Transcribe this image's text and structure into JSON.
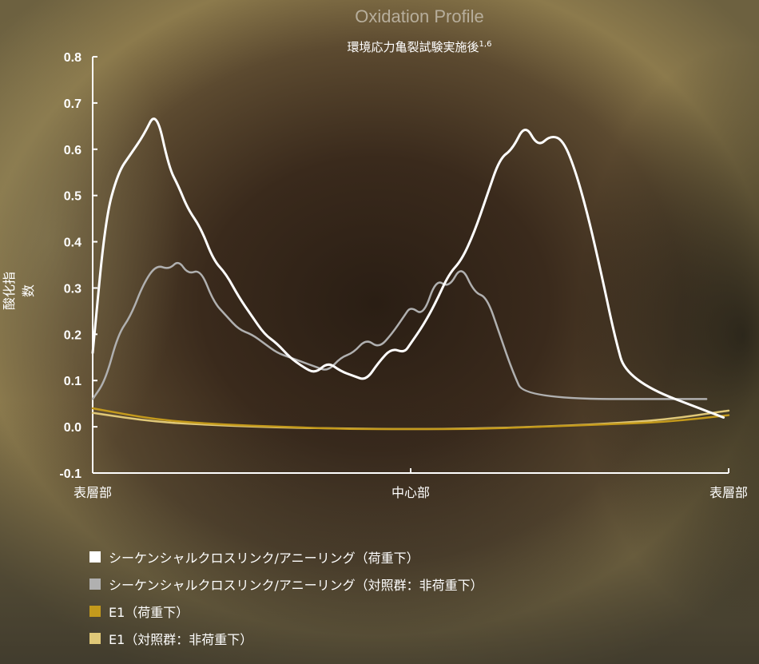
{
  "title": "Oxidation Profile",
  "subtitle": "環境応力亀裂試験実施後",
  "subtitle_sup": "1,6",
  "chart_data": {
    "type": "line",
    "ylabel": "酸化指数",
    "ylim": [
      -0.1,
      0.8
    ],
    "yticks": [
      "0.8",
      "0.7",
      "0.6",
      "0.5",
      "0.4",
      "0.3",
      "0.2",
      "0.1",
      "0.0",
      "-0.1"
    ],
    "ytick_values": [
      0.8,
      0.7,
      0.6,
      0.5,
      0.4,
      0.3,
      0.2,
      0.1,
      0.0,
      -0.1
    ],
    "xlim": [
      0,
      100
    ],
    "xtick_labels": [
      "表層部",
      "中心部",
      "表層部"
    ],
    "xtick_values": [
      0,
      50,
      100
    ],
    "series": [
      {
        "name": "シーケンシャルクロスリンク/アニーリング（荷重下）",
        "color": "#ffffff",
        "x": [
          0,
          2,
          4,
          6,
          8,
          10,
          12,
          13.5,
          15,
          17,
          19,
          21,
          23,
          25,
          27,
          29,
          31,
          33,
          35,
          37,
          39,
          41,
          43,
          45,
          47,
          49,
          50,
          52,
          54,
          56,
          58,
          60,
          62,
          64,
          66,
          68,
          70,
          72,
          74,
          76,
          78,
          80,
          82,
          84,
          85.5,
          87,
          88.5,
          90,
          92,
          94,
          96,
          98,
          100
        ],
        "y": [
          0.16,
          0.45,
          0.55,
          0.59,
          0.63,
          0.685,
          0.56,
          0.52,
          0.47,
          0.43,
          0.36,
          0.33,
          0.28,
          0.24,
          0.2,
          0.18,
          0.15,
          0.13,
          0.115,
          0.14,
          0.12,
          0.11,
          0.1,
          0.14,
          0.17,
          0.16,
          0.18,
          0.22,
          0.27,
          0.33,
          0.36,
          0.42,
          0.5,
          0.58,
          0.6,
          0.655,
          0.605,
          0.63,
          0.62,
          0.55,
          0.45,
          0.33,
          0.2,
          0.1,
          0.02,
          0.0,
          0.0,
          0.0,
          0.0,
          0.0,
          0.0,
          0.0,
          0.0
        ]
      },
      {
        "name": "シーケンシャルクロスリンク/アニーリング（対照群：非荷重下）",
        "color": "#b0b0b0",
        "x": [
          0,
          2,
          4,
          6,
          8,
          10,
          12,
          13.5,
          15,
          17,
          19,
          21,
          23,
          25,
          27,
          29,
          31,
          33,
          35,
          37,
          39,
          41,
          43,
          45,
          47,
          49,
          50,
          52,
          54,
          56,
          58,
          60,
          62,
          64,
          66,
          68,
          70,
          72,
          74,
          76,
          78,
          80,
          82,
          84,
          85.5
        ],
        "y": [
          0.06,
          0.1,
          0.2,
          0.24,
          0.31,
          0.35,
          0.34,
          0.36,
          0.33,
          0.34,
          0.27,
          0.24,
          0.21,
          0.2,
          0.18,
          0.16,
          0.15,
          0.14,
          0.13,
          0.12,
          0.15,
          0.16,
          0.19,
          0.17,
          0.2,
          0.24,
          0.26,
          0.24,
          0.32,
          0.3,
          0.35,
          0.29,
          0.28,
          0.2,
          0.12,
          0.06,
          0,
          0,
          0,
          0,
          0,
          0,
          0,
          0,
          0
        ]
      },
      {
        "name": "E1（荷重下）",
        "color": "#c49a1c",
        "x": [
          0,
          10,
          20,
          30,
          40,
          50,
          60,
          70,
          80,
          90,
          100
        ],
        "y": [
          0.04,
          0.015,
          0.005,
          0.0,
          -0.005,
          -0.005,
          -0.005,
          0.0,
          0.005,
          0.01,
          0.025
        ]
      },
      {
        "name": "E1（対照群：非荷重下）",
        "color": "#e0c878",
        "x": [
          0,
          10,
          20,
          30,
          40,
          50,
          60,
          70,
          80,
          90,
          100
        ],
        "y": [
          0.03,
          0.01,
          0.003,
          -0.002,
          -0.004,
          -0.005,
          -0.004,
          0.0,
          0.006,
          0.015,
          0.035
        ]
      }
    ],
    "grid": false
  },
  "legend": [
    {
      "label": "シーケンシャルクロスリンク/アニーリング（荷重下）",
      "color": "#ffffff"
    },
    {
      "label": "シーケンシャルクロスリンク/アニーリング（対照群：非荷重下）",
      "color": "#b0b0b0"
    },
    {
      "label": "E1（荷重下）",
      "color": "#c49a1c"
    },
    {
      "label": "E1（対照群：非荷重下）",
      "color": "#e0c878"
    }
  ]
}
